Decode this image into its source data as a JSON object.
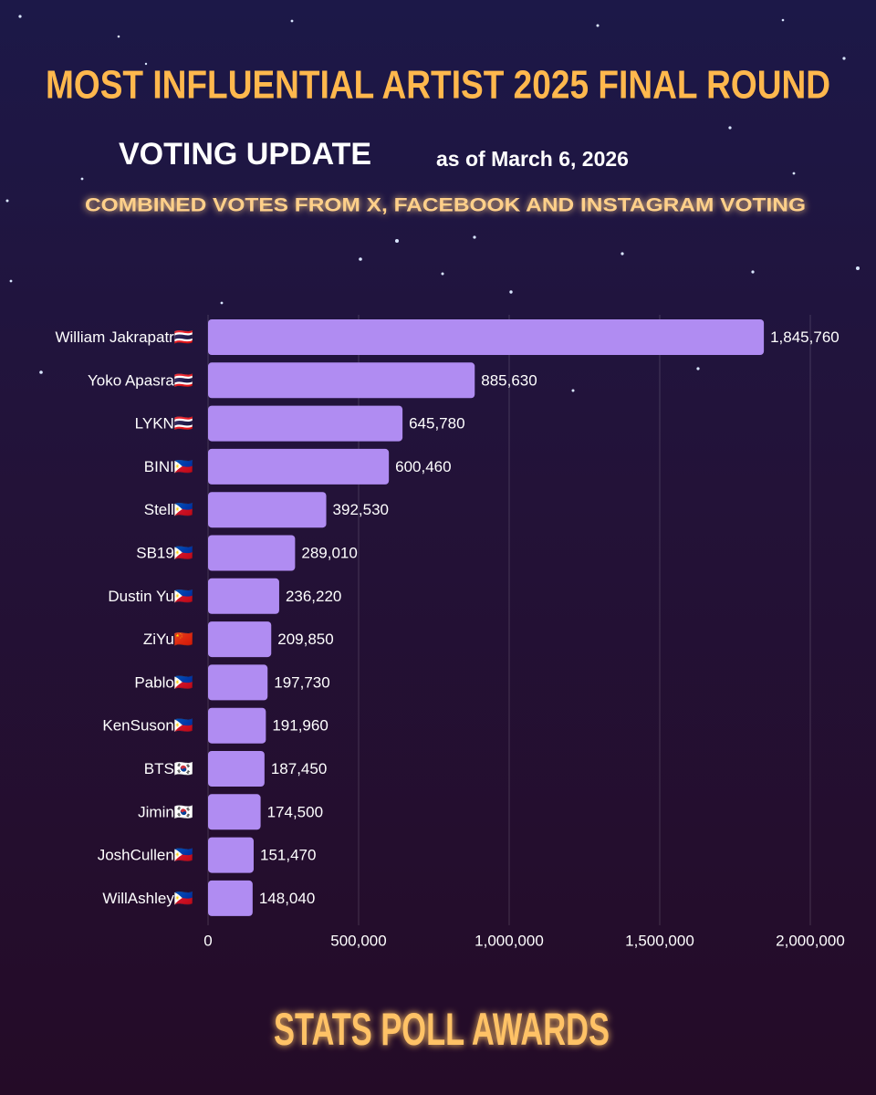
{
  "chart_data": {
    "type": "bar",
    "orientation": "horizontal",
    "title": "MOST INFLUENTIAL ARTIST 2025 FINAL ROUND",
    "heading": "VOTING UPDATE",
    "date_note": "as of March 6, 2026",
    "subtitle": "COMBINED VOTES FROM X, FACEBOOK AND INSTAGRAM VOTING",
    "footer": "STATS POLL AWARDS",
    "categories": [
      "William Jakrapatr🇹🇭",
      "Yoko Apasra🇹🇭",
      "LYKN🇹🇭",
      "BINI🇵🇭",
      "Stell🇵🇭",
      "SB19🇵🇭",
      "Dustin Yu🇵🇭",
      "ZiYu🇨🇳",
      "Pablo🇵🇭",
      "KenSuson🇵🇭",
      "BTS🇰🇷",
      "Jimin🇰🇷",
      "JoshCullen🇵🇭",
      "WillAshley🇵🇭"
    ],
    "values": [
      1845760,
      885630,
      645780,
      600460,
      392530,
      289010,
      236220,
      209850,
      197730,
      191960,
      187450,
      174500,
      151470,
      148040
    ],
    "value_labels": [
      "1,845,760",
      "885,630",
      "645,780",
      "600,460",
      "392,530",
      "289,010",
      "236,220",
      "209,850",
      "197,730",
      "191,960",
      "187,450",
      "174,500",
      "151,470",
      "148,040"
    ],
    "color": "#b08cf2",
    "xlim": [
      0,
      2000000
    ],
    "xticks": [
      0,
      {
        "value": 500000,
        "label": "500,000"
      },
      {
        "value": 1000000,
        "label": "1,000,000"
      },
      {
        "value": 1500000,
        "label": "1,500,000"
      },
      {
        "value": 2000000,
        "label": "2,000,000"
      }
    ],
    "grid": true
  }
}
